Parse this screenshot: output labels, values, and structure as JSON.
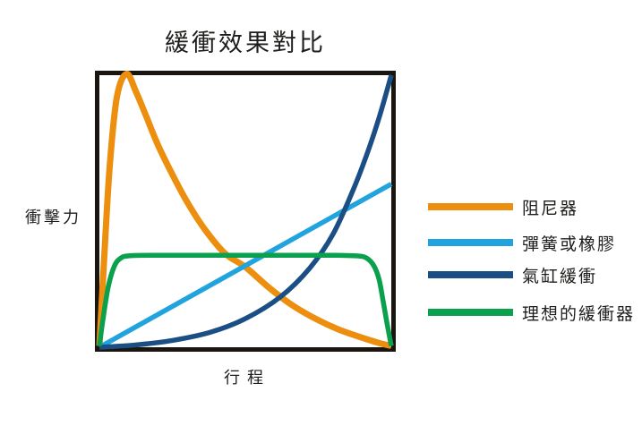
{
  "chart_data": {
    "type": "line",
    "title": "緩衝效果對比",
    "xlabel": "行程",
    "ylabel": "衝擊力",
    "xlim": [
      0,
      1
    ],
    "ylim": [
      0,
      1
    ],
    "grid": false,
    "axis_ticks": "none",
    "legend_position": "right",
    "frame_color": "#1b1510",
    "background_color": "#ffffff",
    "series": [
      {
        "name": "阻尼器",
        "color": "#EC8E0E",
        "width": 7,
        "shape": "sharp peak then exponential decay",
        "points": [
          [
            0,
            0.005
          ],
          [
            0.015,
            0.3
          ],
          [
            0.035,
            0.66
          ],
          [
            0.06,
            0.92
          ],
          [
            0.093,
            1.005
          ],
          [
            0.125,
            0.94
          ],
          [
            0.16,
            0.85
          ],
          [
            0.2,
            0.745
          ],
          [
            0.25,
            0.635
          ],
          [
            0.3,
            0.535
          ],
          [
            0.36,
            0.435
          ],
          [
            0.43,
            0.345
          ],
          [
            0.5,
            0.295
          ],
          [
            0.58,
            0.22
          ],
          [
            0.66,
            0.155
          ],
          [
            0.74,
            0.105
          ],
          [
            0.82,
            0.065
          ],
          [
            0.9,
            0.035
          ],
          [
            0.96,
            0.015
          ],
          [
            1,
            0.005
          ]
        ]
      },
      {
        "name": "彈簧或橡膠",
        "color": "#21A4DE",
        "width": 5.5,
        "shape": "linear",
        "points": [
          [
            0,
            0
          ],
          [
            0.5,
            0.3
          ],
          [
            1,
            0.6
          ]
        ]
      },
      {
        "name": "氣缸緩衝",
        "color": "#1A4E84",
        "width": 5.5,
        "shape": "exponential rise",
        "points": [
          [
            0,
            0
          ],
          [
            0.12,
            0.008
          ],
          [
            0.25,
            0.025
          ],
          [
            0.38,
            0.055
          ],
          [
            0.5,
            0.105
          ],
          [
            0.62,
            0.185
          ],
          [
            0.72,
            0.29
          ],
          [
            0.8,
            0.415
          ],
          [
            0.87,
            0.58
          ],
          [
            0.92,
            0.72
          ],
          [
            0.96,
            0.85
          ],
          [
            1,
            1.0
          ]
        ]
      },
      {
        "name": "理想的緩衝器",
        "color": "#0AA04D",
        "width": 5.5,
        "shape": "flat plateau (ideal constant force)",
        "points": [
          [
            0,
            0.005
          ],
          [
            0.012,
            0.1
          ],
          [
            0.03,
            0.22
          ],
          [
            0.05,
            0.295
          ],
          [
            0.07,
            0.325
          ],
          [
            0.1,
            0.336
          ],
          [
            0.2,
            0.338
          ],
          [
            0.4,
            0.338
          ],
          [
            0.6,
            0.338
          ],
          [
            0.8,
            0.338
          ],
          [
            0.88,
            0.336
          ],
          [
            0.915,
            0.328
          ],
          [
            0.94,
            0.3
          ],
          [
            0.958,
            0.25
          ],
          [
            0.972,
            0.17
          ],
          [
            0.985,
            0.09
          ],
          [
            1,
            0.005
          ]
        ]
      }
    ]
  }
}
